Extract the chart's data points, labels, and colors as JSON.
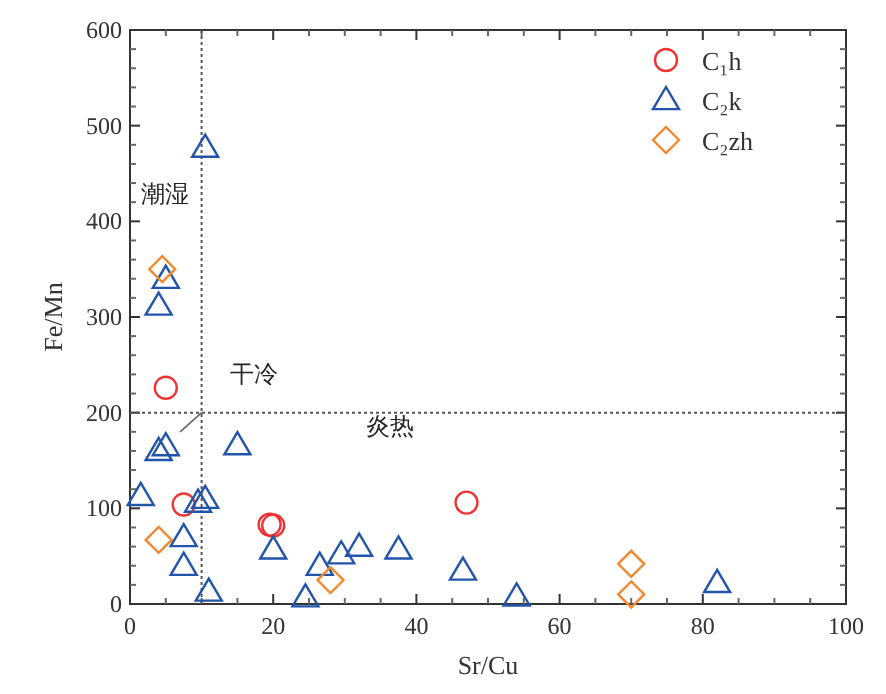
{
  "chart_data": {
    "type": "scatter",
    "xlabel": "Sr/Cu",
    "ylabel": "Fe/Mn",
    "xlim": [
      0,
      100
    ],
    "ylim": [
      0,
      600
    ],
    "xticks": [
      0,
      20,
      40,
      60,
      80,
      100
    ],
    "yticks": [
      0,
      100,
      200,
      300,
      400,
      500,
      600
    ],
    "grid": false,
    "legend": "top right",
    "series": [
      {
        "name": "C₁h",
        "color": "#ee3333",
        "marker": "circle",
        "x": [
          5,
          7.5,
          19.5,
          20,
          47
        ],
        "values": [
          226,
          104,
          83,
          82,
          106
        ]
      },
      {
        "name": "C₂k",
        "color": "#2255aa",
        "marker": "triangle",
        "x": [
          4,
          5,
          10.5,
          4,
          5,
          1.5,
          9.5,
          10.5,
          15,
          7.5,
          7.5,
          11,
          20,
          24.5,
          26.5,
          29.5,
          32,
          37.5,
          46.5,
          54,
          82
        ],
        "values": [
          312,
          340,
          477,
          160,
          165,
          113,
          106,
          110,
          166,
          70,
          40,
          13,
          57,
          7,
          40,
          52,
          60,
          57,
          35,
          8,
          22
        ]
      },
      {
        "name": "C₂zh",
        "color": "#f08a30",
        "marker": "diamond",
        "x": [
          4.5,
          4,
          28,
          70,
          70
        ],
        "values": [
          350,
          67,
          25,
          42,
          10
        ]
      }
    ],
    "ref_lines": [
      {
        "axis": "x",
        "value": 10,
        "line_style": "dotted",
        "color": "#555555"
      },
      {
        "axis": "y",
        "value": 200,
        "line_style": "dotted",
        "color": "#555555"
      }
    ],
    "annotations": [
      "潮湿",
      "干冷",
      "炎热"
    ]
  }
}
